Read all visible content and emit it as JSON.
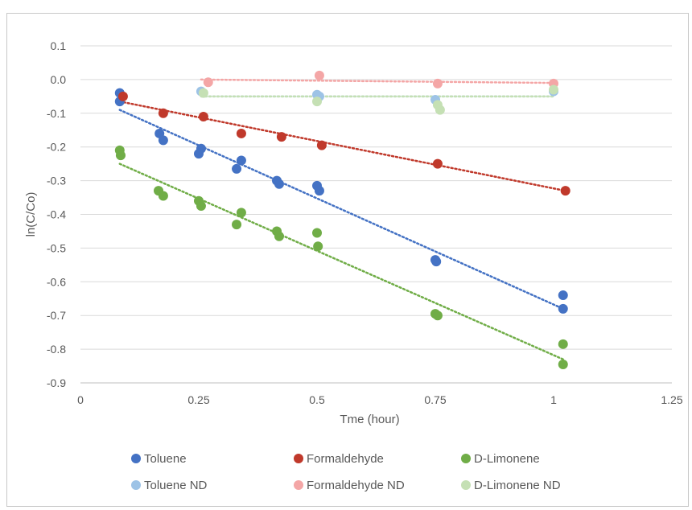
{
  "chart_data": {
    "type": "scatter",
    "title": "",
    "xlabel": "Tme (hour)",
    "ylabel": "ln(C/Co)",
    "xlim": [
      0,
      1.25
    ],
    "ylim": [
      -0.9,
      0.1
    ],
    "x_ticks": [
      0,
      0.25,
      0.5,
      0.75,
      1,
      1.25
    ],
    "x_tick_labels": [
      "0",
      "0.25",
      "0.5",
      "0.75",
      "1",
      "1.25"
    ],
    "y_ticks": [
      0.1,
      0.0,
      -0.1,
      -0.2,
      -0.3,
      -0.4,
      -0.5,
      -0.6,
      -0.7,
      -0.8,
      -0.9
    ],
    "y_tick_labels": [
      "0.1",
      "0.0",
      "-0.1",
      "-0.2",
      "-0.3",
      "-0.4",
      "-0.5",
      "-0.6",
      "-0.7",
      "-0.8",
      "-0.9"
    ],
    "grid": "horizontal",
    "legend_position": "bottom",
    "series": [
      {
        "name": "Toluene",
        "color": "#4472c4",
        "points": [
          [
            0.083,
            -0.04
          ],
          [
            0.083,
            -0.065
          ],
          [
            0.167,
            -0.16
          ],
          [
            0.175,
            -0.18
          ],
          [
            0.25,
            -0.22
          ],
          [
            0.255,
            -0.205
          ],
          [
            0.33,
            -0.265
          ],
          [
            0.34,
            -0.24
          ],
          [
            0.415,
            -0.3
          ],
          [
            0.42,
            -0.31
          ],
          [
            0.5,
            -0.315
          ],
          [
            0.505,
            -0.33
          ],
          [
            0.75,
            -0.535
          ],
          [
            0.752,
            -0.54
          ],
          [
            1.02,
            -0.64
          ],
          [
            1.02,
            -0.68
          ]
        ],
        "trend": [
          [
            0.083,
            -0.09
          ],
          [
            1.02,
            -0.68
          ]
        ]
      },
      {
        "name": "Formaldehyde",
        "color": "#c0392b",
        "points": [
          [
            0.09,
            -0.05
          ],
          [
            0.175,
            -0.1
          ],
          [
            0.26,
            -0.11
          ],
          [
            0.34,
            -0.16
          ],
          [
            0.425,
            -0.17
          ],
          [
            0.51,
            -0.195
          ],
          [
            0.755,
            -0.25
          ],
          [
            1.025,
            -0.33
          ]
        ],
        "trend": [
          [
            0.083,
            -0.065
          ],
          [
            1.025,
            -0.33
          ]
        ]
      },
      {
        "name": "D-Limonene",
        "color": "#70ad47",
        "points": [
          [
            0.083,
            -0.21
          ],
          [
            0.085,
            -0.225
          ],
          [
            0.165,
            -0.33
          ],
          [
            0.175,
            -0.345
          ],
          [
            0.25,
            -0.36
          ],
          [
            0.255,
            -0.375
          ],
          [
            0.33,
            -0.43
          ],
          [
            0.34,
            -0.395
          ],
          [
            0.415,
            -0.45
          ],
          [
            0.42,
            -0.465
          ],
          [
            0.5,
            -0.455
          ],
          [
            0.502,
            -0.495
          ],
          [
            0.75,
            -0.695
          ],
          [
            0.755,
            -0.7
          ],
          [
            1.02,
            -0.785
          ],
          [
            1.02,
            -0.845
          ]
        ],
        "trend": [
          [
            0.083,
            -0.25
          ],
          [
            1.02,
            -0.83
          ]
        ]
      },
      {
        "name": "Toluene ND",
        "color": "#9dc3e6",
        "points": [
          [
            0.255,
            -0.035
          ],
          [
            0.5,
            -0.045
          ],
          [
            0.505,
            -0.05
          ],
          [
            0.75,
            -0.06
          ],
          [
            1.0,
            -0.035
          ]
        ],
        "trend": [
          [
            0.255,
            -0.05
          ],
          [
            1.0,
            -0.05
          ]
        ]
      },
      {
        "name": "Formaldehyde ND",
        "color": "#f4a6a6",
        "points": [
          [
            0.27,
            -0.008
          ],
          [
            0.505,
            0.012
          ],
          [
            0.755,
            -0.012
          ],
          [
            1.0,
            -0.012
          ]
        ],
        "trend": [
          [
            0.255,
            0.0
          ],
          [
            1.0,
            -0.01
          ]
        ]
      },
      {
        "name": "D-Limonene ND",
        "color": "#c5e0b4",
        "points": [
          [
            0.26,
            -0.04
          ],
          [
            0.5,
            -0.065
          ],
          [
            0.755,
            -0.075
          ],
          [
            0.76,
            -0.09
          ],
          [
            1.0,
            -0.03
          ]
        ],
        "trend": [
          [
            0.255,
            -0.05
          ],
          [
            1.0,
            -0.05
          ]
        ]
      }
    ]
  }
}
